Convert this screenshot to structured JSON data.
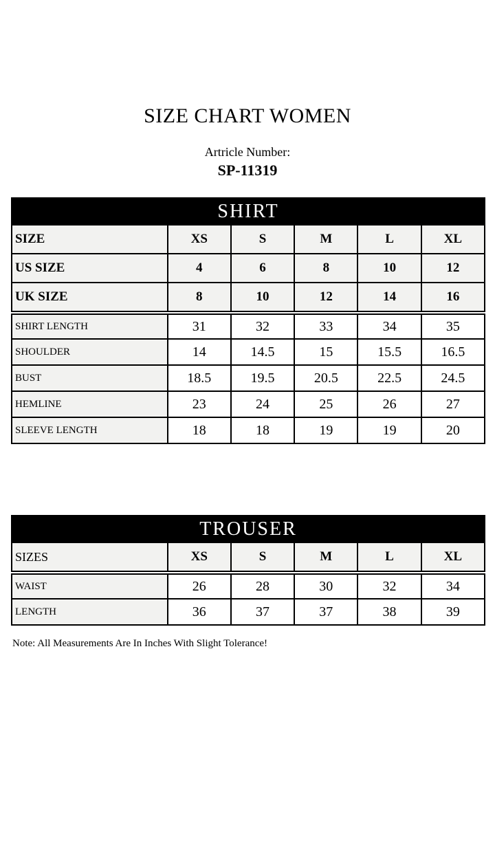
{
  "page": {
    "title": "SIZE CHART WOMEN",
    "article_label": "Artricle Number:",
    "article_number": "SP-11319",
    "note": "Note: All Measurements Are In Inches With Slight Tolerance!"
  },
  "colors": {
    "banner_bg": "#000000",
    "banner_text": "#ffffff",
    "header_cell_bg": "#f2f2f0",
    "value_cell_bg": "#ffffff",
    "border": "#000000",
    "page_bg": "#ffffff",
    "text": "#000000"
  },
  "tables": [
    {
      "id": "shirt",
      "banner": "SHIRT",
      "header_rows": [
        {
          "label": "SIZE",
          "values": [
            "XS",
            "S",
            "M",
            "L",
            "XL"
          ]
        },
        {
          "label": "US SIZE",
          "values": [
            "4",
            "6",
            "8",
            "10",
            "12"
          ]
        },
        {
          "label": "UK SIZE",
          "values": [
            "8",
            "10",
            "12",
            "14",
            "16"
          ]
        }
      ],
      "body_rows": [
        {
          "label": "SHIRT LENGTH",
          "values": [
            "31",
            "32",
            "33",
            "34",
            "35"
          ]
        },
        {
          "label": "SHOULDER",
          "values": [
            "14",
            "14.5",
            "15",
            "15.5",
            "16.5"
          ]
        },
        {
          "label": "BUST",
          "values": [
            "18.5",
            "19.5",
            "20.5",
            "22.5",
            "24.5"
          ]
        },
        {
          "label": "HEMLINE",
          "values": [
            "23",
            "24",
            "25",
            "26",
            "27"
          ]
        },
        {
          "label": "SLEEVE LENGTH",
          "values": [
            "18",
            "18",
            "19",
            "19",
            "20"
          ]
        }
      ]
    },
    {
      "id": "trouser",
      "banner": "TROUSER",
      "header_rows": [
        {
          "label": "SIZES",
          "values": [
            "XS",
            "S",
            "M",
            "L",
            "XL"
          ]
        }
      ],
      "body_rows": [
        {
          "label": "WAIST",
          "values": [
            "26",
            "28",
            "30",
            "32",
            "34"
          ]
        },
        {
          "label": "LENGTH",
          "values": [
            "36",
            "37",
            "37",
            "38",
            "39"
          ]
        }
      ]
    }
  ]
}
